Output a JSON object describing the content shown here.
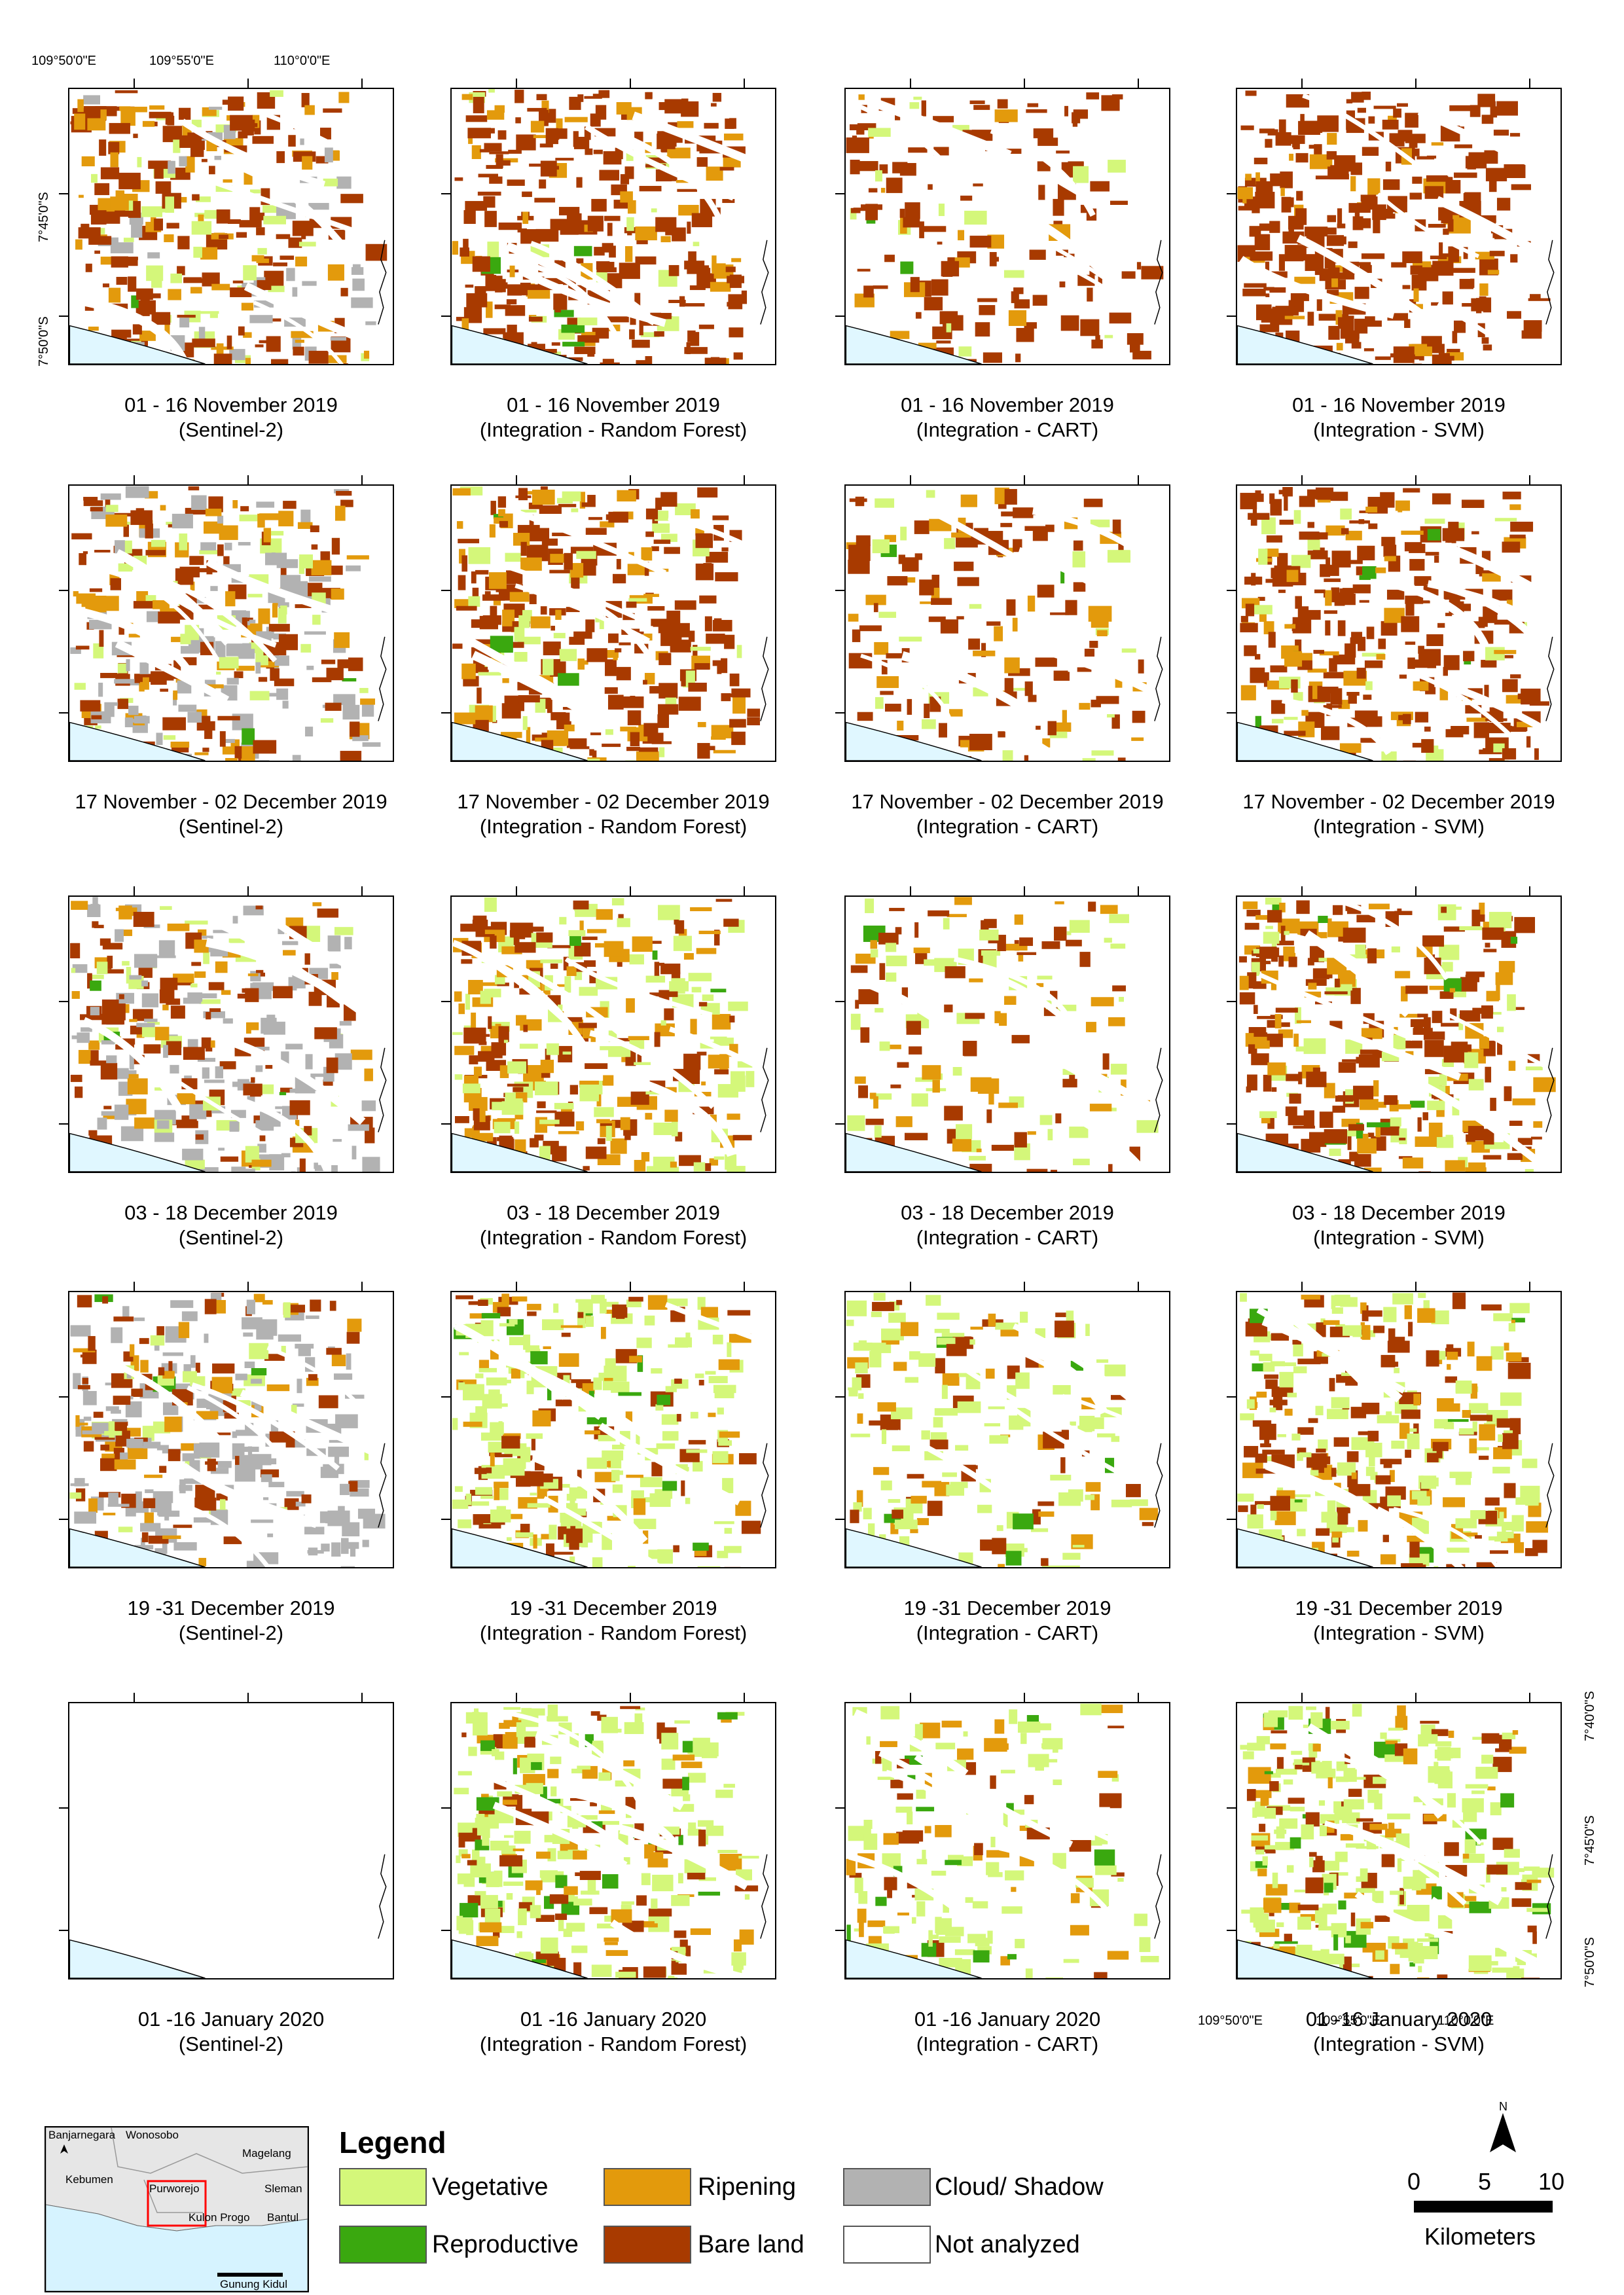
{
  "axes": {
    "top_lon_labels": [
      "109°50'0\"E",
      "109°55'0\"E",
      "110°0'0\"E"
    ],
    "bottom_lon_labels": [
      "109°50'0\"E",
      "109°55'0\"E",
      "110°0'0\"E"
    ],
    "left_lat_labels": [
      "7°45'0\"S",
      "7°50'0\"S"
    ],
    "right_lat_labels": [
      "7°40'0\"S",
      "7°45'0\"S",
      "7°50'0\"S"
    ]
  },
  "periods": [
    "01 - 16 November 2019",
    "17 November - 02 December 2019",
    "03 - 18 December 2019",
    "19 -31 December 2019",
    "01 -16 January 2020"
  ],
  "methods": [
    "(Sentinel-2)",
    "(Integration - Random Forest)",
    "(Integration - CART)",
    "(Integration - SVM)"
  ],
  "legend": {
    "title": "Legend",
    "items": [
      {
        "label": "Vegetative",
        "color": "#d4f77a"
      },
      {
        "label": "Ripening",
        "color": "#e39a0c"
      },
      {
        "label": "Cloud/ Shadow",
        "color": "#b2b2b2"
      },
      {
        "label": "Reproductive",
        "color": "#3aa80f"
      },
      {
        "label": "Bare land",
        "color": "#a83a00"
      },
      {
        "label": "Not analyzed",
        "color": "#ffffff"
      }
    ]
  },
  "scale_bar": {
    "labels": [
      "0",
      "5",
      "10"
    ],
    "unit": "Kilometers",
    "north": "N"
  },
  "inset": {
    "places": [
      "Banjarnegara",
      "Wonosobo",
      "Magelang",
      "Kebumen",
      "Purworejo",
      "Sleman",
      "Kulon Progo",
      "Bantul",
      "Gunung Kidul"
    ]
  },
  "colors": {
    "sea": "#e0f7ff",
    "bare_land": "#a83a00",
    "ripening": "#e39a0c",
    "vegetative": "#d4f77a",
    "reproductive": "#3aa80f",
    "cloud": "#b2b2b2"
  }
}
